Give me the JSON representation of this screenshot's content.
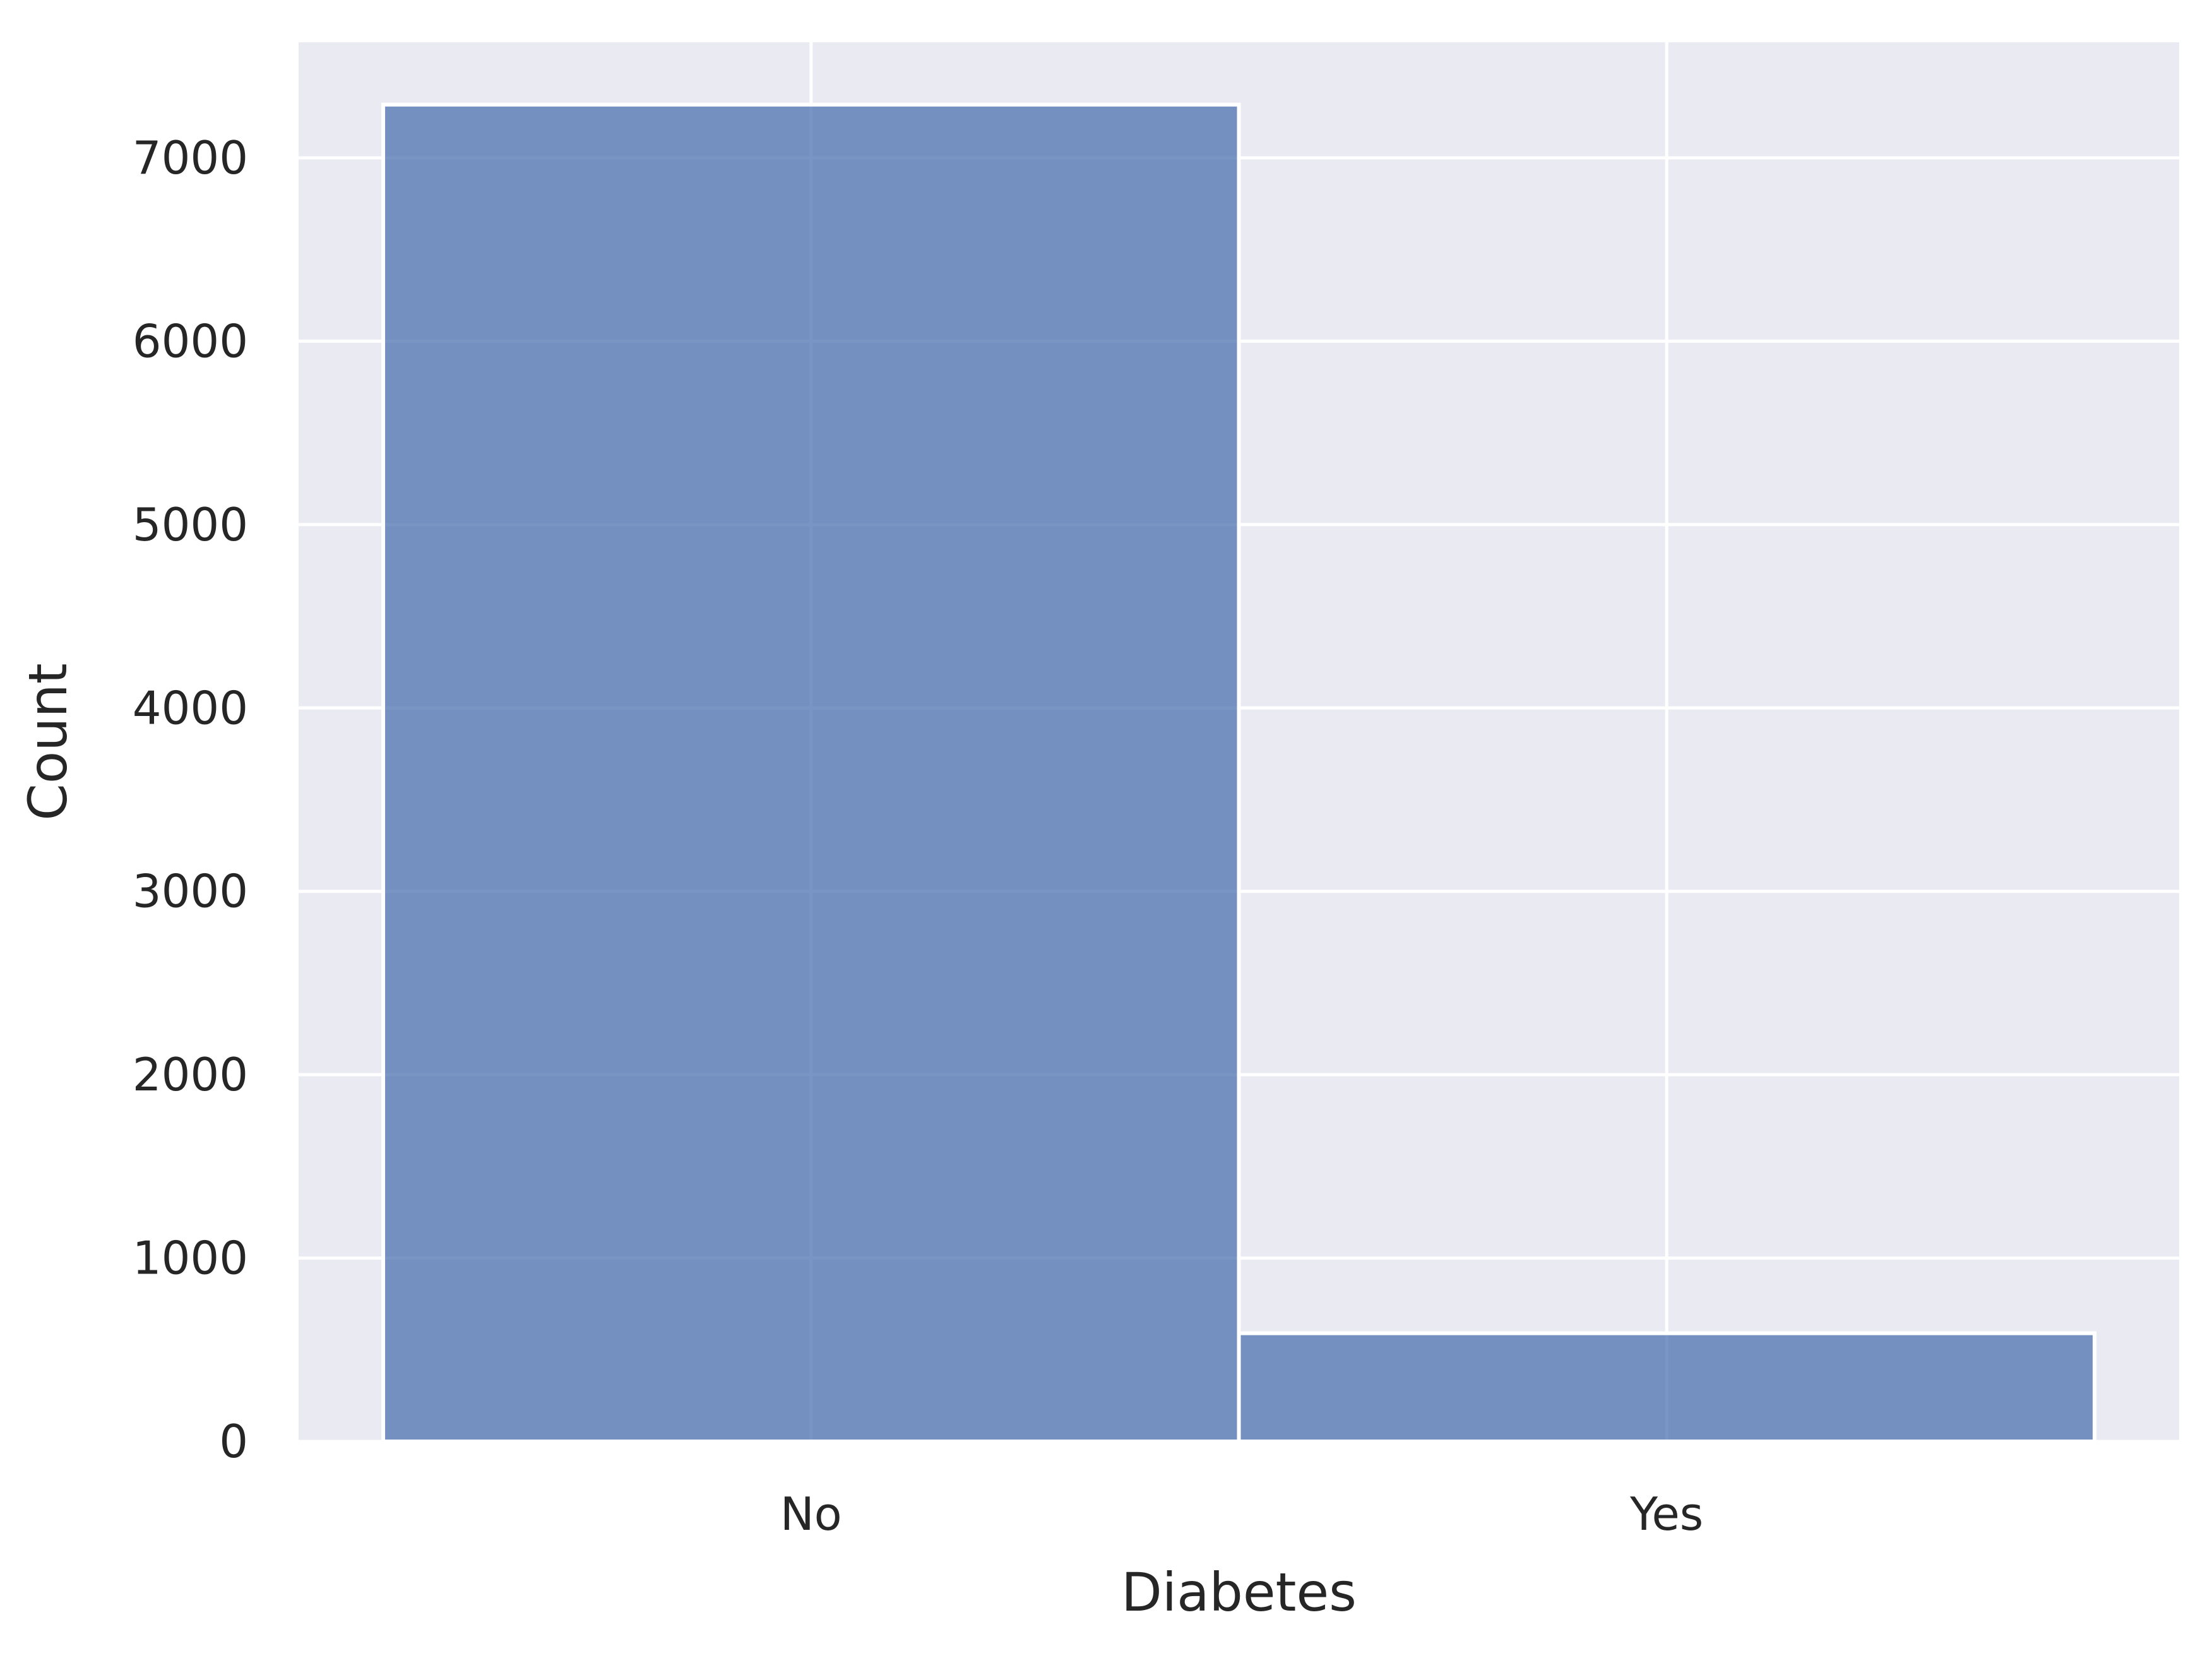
{
  "chart_data": {
    "type": "bar",
    "categories": [
      "No",
      "Yes"
    ],
    "values": [
      7290,
      590
    ],
    "title": "",
    "xlabel": "Diabetes",
    "ylabel": "Count",
    "ylim": [
      0,
      7630
    ],
    "yticks": [
      0,
      1000,
      2000,
      3000,
      4000,
      5000,
      6000,
      7000
    ],
    "grid": true,
    "colors": {
      "background": "#EAEAF2",
      "grid": "#FFFFFF",
      "bar": "#4C72B0",
      "bar_opacity": 0.75,
      "text": "#262626"
    }
  }
}
